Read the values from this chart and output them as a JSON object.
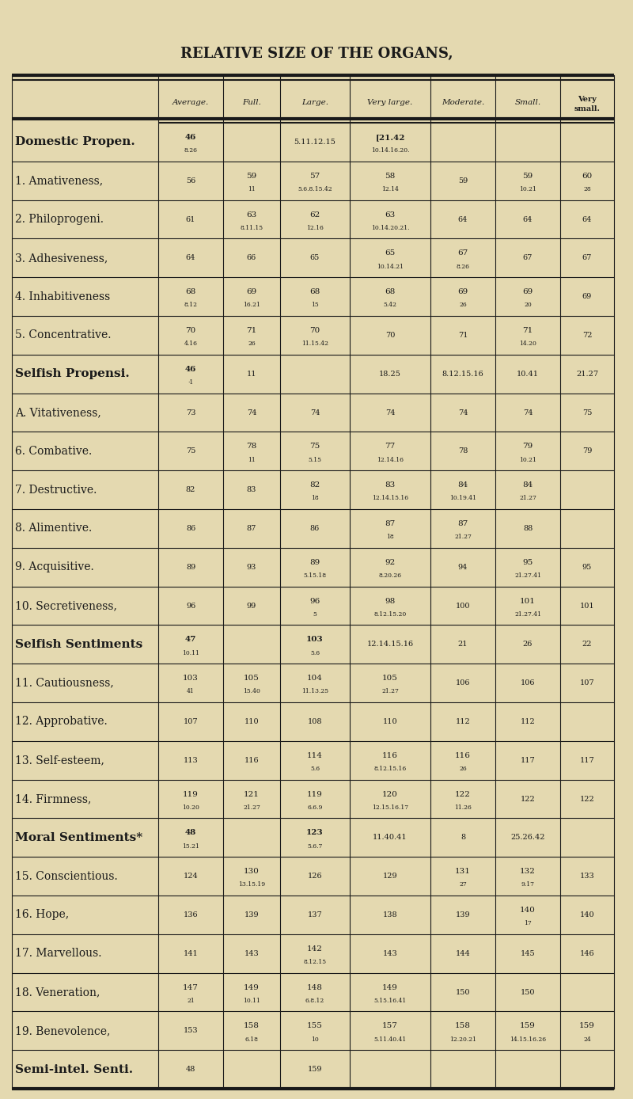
{
  "title": "RELATIVE SIZE OF THE ORGANS,",
  "bg_color": "#e8dcc0",
  "col_headers": [
    "Average.",
    "Full.",
    "Large.",
    "Very large.",
    "Moderate.",
    "Small.",
    "Very\nsmall."
  ],
  "rows": [
    {
      "label": "Domestic Propen.",
      "bold": true,
      "data": [
        "46\n8.26",
        "",
        "5.11.12.15",
        "[21.42\n10.14.16.20.",
        "",
        "",
        ""
      ]
    },
    {
      "label": "1. Amativeness,",
      "bold": false,
      "data": [
        "56",
        "59\n11",
        "57\n5.6.8.15.42",
        "58\n12.14",
        "59",
        "59\n10.21",
        "60\n28"
      ]
    },
    {
      "label": "2. Philoprogeni.",
      "bold": false,
      "data": [
        "61",
        "63\n8.11.15",
        "62\n12.16",
        "63\n10.14.20.21.",
        "64",
        "64",
        "64"
      ]
    },
    {
      "label": "3. Adhesiveness,",
      "bold": false,
      "data": [
        "64",
        "66",
        "65",
        "65\n10.14.21",
        "67\n8.26",
        "67",
        "67"
      ]
    },
    {
      "label": "4. Inhabitiveness",
      "bold": false,
      "data": [
        "68\n8.12",
        "69\n16.21",
        "68\n15",
        "68\n5.42",
        "69\n26",
        "69\n20",
        "69"
      ]
    },
    {
      "label": "5. Concentrative.",
      "bold": false,
      "data": [
        "70\n4.16",
        "71\n26",
        "70\n11.15.42",
        "70",
        "71",
        "71\n14.20",
        "72"
      ]
    },
    {
      "label": "Selfish Propensi.",
      "bold": true,
      "data": [
        "46\n·1",
        "11",
        "",
        "18.25",
        "8.12.15.16",
        "10.41",
        "21.27"
      ]
    },
    {
      "label": "A. Vitativeness,",
      "bold": false,
      "data": [
        "73",
        "74",
        "74",
        "74",
        "74",
        "74",
        "75"
      ]
    },
    {
      "label": "6. Combative.",
      "bold": false,
      "data": [
        "75",
        "78\n11",
        "75\n5.15",
        "77\n12.14.16",
        "78",
        "79\n10.21",
        "79"
      ]
    },
    {
      "label": "7. Destructive.",
      "bold": false,
      "data": [
        "82",
        "83",
        "82\n18",
        "83\n12.14.15.16",
        "84\n10.19.41",
        "84\n21.27",
        ""
      ]
    },
    {
      "label": "8. Alimentive.",
      "bold": false,
      "data": [
        "86",
        "87",
        "86",
        "87\n18",
        "87\n21.27",
        "88",
        ""
      ]
    },
    {
      "label": "9. Acquisitive.",
      "bold": false,
      "data": [
        "89",
        "93",
        "89\n5.15.18",
        "92\n8.20.26",
        "94",
        "95\n21.27.41",
        "95"
      ]
    },
    {
      "label": "10. Secretiveness,",
      "bold": false,
      "data": [
        "96",
        "99",
        "96\n5",
        "98\n8.12.15.20",
        "100",
        "101\n21.27.41",
        "101"
      ]
    },
    {
      "label": "Selfish Sentiments",
      "bold": true,
      "data": [
        "47\n10.11",
        "",
        "103\n5.6",
        "12.14.15.16",
        "21",
        "26",
        "22"
      ]
    },
    {
      "label": "11. Cautiousness,",
      "bold": false,
      "data": [
        "103\n41",
        "105\n15.40",
        "104\n11.13.25",
        "105\n21.27",
        "106",
        "106",
        "107"
      ]
    },
    {
      "label": "12. Approbative.",
      "bold": false,
      "data": [
        "107",
        "110",
        "108",
        "110",
        "112",
        "112",
        ""
      ]
    },
    {
      "label": "13. Self-esteem,",
      "bold": false,
      "data": [
        "113",
        "116",
        "114\n5.6",
        "116\n8.12.15.16",
        "116\n26",
        "117",
        "117"
      ]
    },
    {
      "label": "14. Firmness,",
      "bold": false,
      "data": [
        "119\n10.20",
        "121\n21.27",
        "119\n6.6.9",
        "120\n12.15.16.17",
        "122\n11.26",
        "122",
        "122"
      ]
    },
    {
      "label": "Moral Sentiments*",
      "bold": true,
      "data": [
        "48\n15.21",
        "",
        "123\n5.6.7",
        "11.40.41",
        "8",
        "25.26.42",
        ""
      ]
    },
    {
      "label": "15. Conscientious.",
      "bold": false,
      "data": [
        "124",
        "130\n13.15.19",
        "126",
        "129",
        "131\n27",
        "132\n9.17",
        "133"
      ]
    },
    {
      "label": "16. Hope,",
      "bold": false,
      "data": [
        "136",
        "139",
        "137",
        "138",
        "139",
        "140\n17",
        "140"
      ]
    },
    {
      "label": "17. Marvellous.",
      "bold": false,
      "data": [
        "141",
        "143",
        "142\n8.12.15",
        "143",
        "144",
        "145",
        "146"
      ]
    },
    {
      "label": "18. Veneration,",
      "bold": false,
      "data": [
        "147\n21",
        "149\n10.11",
        "148\n6.8.12",
        "149\n5.15.16.41",
        "150",
        "150",
        ""
      ]
    },
    {
      "label": "19. Benevolence,",
      "bold": false,
      "data": [
        "153",
        "158\n6.18",
        "155\n10",
        "157\n5.11.40.41",
        "158\n12.20.21",
        "159\n14.15.16.26",
        "159\n24"
      ]
    },
    {
      "label": "Semi-intel. Senti.",
      "bold": true,
      "data": [
        "48",
        "",
        "159",
        "",
        "",
        "",
        ""
      ]
    }
  ]
}
